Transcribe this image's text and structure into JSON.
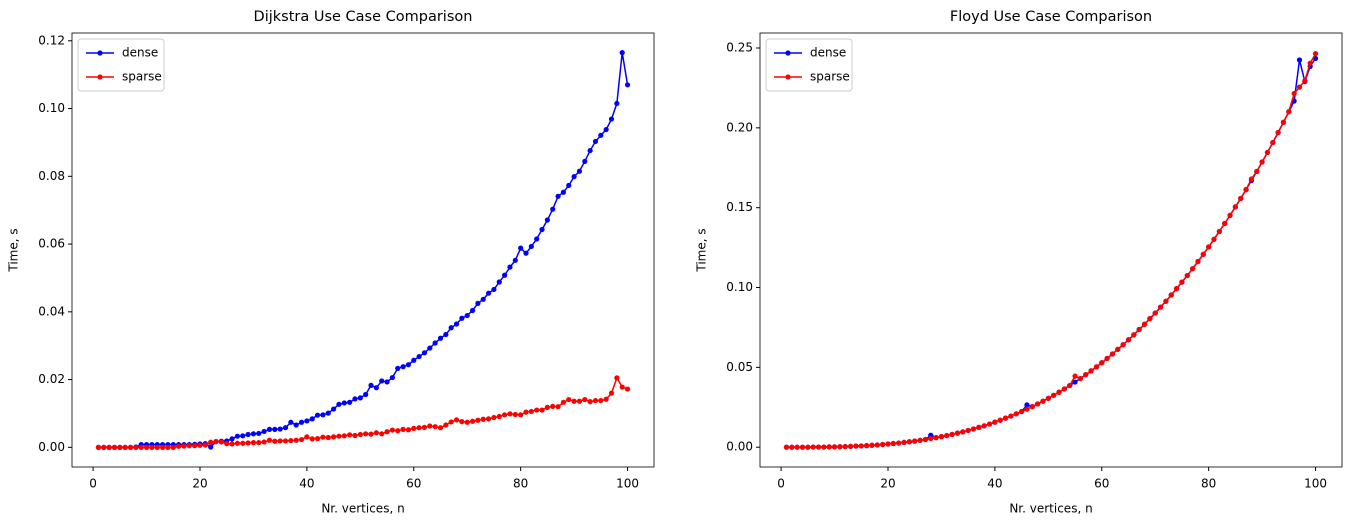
{
  "chart_data": [
    {
      "type": "line",
      "title": "Dijkstra Use Case Comparison",
      "x_label": "Nr. vertices, n",
      "y_label": "Time, s",
      "x": [
        1,
        2,
        3,
        4,
        5,
        6,
        7,
        8,
        9,
        10,
        11,
        12,
        13,
        14,
        15,
        16,
        17,
        18,
        19,
        20,
        21,
        22,
        23,
        24,
        25,
        26,
        27,
        28,
        29,
        30,
        31,
        32,
        33,
        34,
        35,
        36,
        37,
        38,
        39,
        40,
        41,
        42,
        43,
        44,
        45,
        46,
        47,
        48,
        49,
        50,
        51,
        52,
        53,
        54,
        55,
        56,
        57,
        58,
        59,
        60,
        61,
        62,
        63,
        64,
        65,
        66,
        67,
        68,
        69,
        70,
        71,
        72,
        73,
        74,
        75,
        76,
        77,
        78,
        79,
        80,
        81,
        82,
        83,
        84,
        85,
        86,
        87,
        88,
        89,
        90,
        91,
        92,
        93,
        94,
        95,
        96,
        97,
        98,
        99,
        100
      ],
      "xlim": [
        -3.95,
        104.95
      ],
      "xticks": [
        0,
        20,
        40,
        60,
        80,
        100
      ],
      "ylim": [
        -0.0058,
        0.1223
      ],
      "yticks": [
        {
          "value": 0,
          "label": "0.00"
        },
        {
          "value": 0.02,
          "label": "0.02"
        },
        {
          "value": 0.04,
          "label": "0.04"
        },
        {
          "value": 0.06,
          "label": "0.06"
        },
        {
          "value": 0.08,
          "label": "0.08"
        },
        {
          "value": 0.1,
          "label": "0.10"
        },
        {
          "value": 0.12,
          "label": "0.12"
        }
      ],
      "legend": "upper left",
      "series": [
        {
          "name": "dense",
          "color": "#0000ff",
          "values": [
            0,
            0,
            0,
            0,
            0,
            0,
            0,
            0.0001,
            0.0008,
            0.0008,
            0.0008,
            0.0008,
            0.0008,
            0.0008,
            0.0008,
            0.0008,
            0.0008,
            0.0008,
            0.0009,
            0.001,
            0.0011,
            0.0001,
            0.0017,
            0.0018,
            0.0019,
            0.0025,
            0.0033,
            0.0034,
            0.0038,
            0.004,
            0.0041,
            0.0047,
            0.0053,
            0.0053,
            0.0054,
            0.0058,
            0.0074,
            0.0066,
            0.0074,
            0.0078,
            0.0084,
            0.0095,
            0.0096,
            0.0101,
            0.0113,
            0.0127,
            0.0131,
            0.0133,
            0.0143,
            0.0146,
            0.0156,
            0.0183,
            0.0176,
            0.0196,
            0.0193,
            0.0206,
            0.0233,
            0.0238,
            0.0244,
            0.0257,
            0.0268,
            0.0279,
            0.0293,
            0.0308,
            0.0322,
            0.0333,
            0.0353,
            0.0364,
            0.0381,
            0.0389,
            0.0404,
            0.0425,
            0.0437,
            0.0455,
            0.0466,
            0.0488,
            0.0508,
            0.0532,
            0.0552,
            0.0588,
            0.0573,
            0.0593,
            0.0615,
            0.0643,
            0.0671,
            0.0703,
            0.0741,
            0.0753,
            0.0773,
            0.0799,
            0.0815,
            0.0844,
            0.0876,
            0.0903,
            0.0921,
            0.0938,
            0.0969,
            0.1015,
            0.1165,
            0.107
          ]
        },
        {
          "name": "sparse",
          "color": "#ff0000",
          "values": [
            0,
            0,
            0,
            0,
            0,
            0,
            0,
            0,
            0,
            0,
            0,
            0,
            0,
            0,
            0,
            0.0003,
            0.0004,
            0.0005,
            0.0005,
            0.0006,
            0.0007,
            0.0015,
            0.0017,
            0.0016,
            0.0011,
            0.001,
            0.0012,
            0.0012,
            0.0013,
            0.0014,
            0.0014,
            0.0016,
            0.0021,
            0.0018,
            0.0019,
            0.0019,
            0.002,
            0.0021,
            0.0023,
            0.0031,
            0.0025,
            0.0026,
            0.003,
            0.0029,
            0.0031,
            0.0033,
            0.0034,
            0.0037,
            0.0035,
            0.0038,
            0.004,
            0.0039,
            0.0043,
            0.004,
            0.0046,
            0.0051,
            0.0049,
            0.0053,
            0.0052,
            0.0056,
            0.0058,
            0.0059,
            0.0063,
            0.0061,
            0.0058,
            0.0066,
            0.0075,
            0.0081,
            0.0076,
            0.0074,
            0.0077,
            0.008,
            0.0083,
            0.0084,
            0.0088,
            0.0091,
            0.0096,
            0.0099,
            0.0097,
            0.0096,
            0.0104,
            0.0106,
            0.011,
            0.011,
            0.0118,
            0.0121,
            0.012,
            0.0133,
            0.0141,
            0.0136,
            0.0136,
            0.0141,
            0.0135,
            0.0138,
            0.0138,
            0.0142,
            0.016,
            0.0205,
            0.0178,
            0.0172
          ]
        }
      ]
    },
    {
      "type": "line",
      "title": "Floyd Use Case Comparison",
      "x_label": "Nr. vertices, n",
      "y_label": "Time, s",
      "x": [
        1,
        2,
        3,
        4,
        5,
        6,
        7,
        8,
        9,
        10,
        11,
        12,
        13,
        14,
        15,
        16,
        17,
        18,
        19,
        20,
        21,
        22,
        23,
        24,
        25,
        26,
        27,
        28,
        29,
        30,
        31,
        32,
        33,
        34,
        35,
        36,
        37,
        38,
        39,
        40,
        41,
        42,
        43,
        44,
        45,
        46,
        47,
        48,
        49,
        50,
        51,
        52,
        53,
        54,
        55,
        56,
        57,
        58,
        59,
        60,
        61,
        62,
        63,
        64,
        65,
        66,
        67,
        68,
        69,
        70,
        71,
        72,
        73,
        74,
        75,
        76,
        77,
        78,
        79,
        80,
        81,
        82,
        83,
        84,
        85,
        86,
        87,
        88,
        89,
        90,
        91,
        92,
        93,
        94,
        95,
        96,
        97,
        98,
        99,
        100
      ],
      "xlim": [
        -3.95,
        104.95
      ],
      "xticks": [
        0,
        20,
        40,
        60,
        80,
        100
      ],
      "ylim": [
        -0.0124,
        0.2594
      ],
      "yticks": [
        {
          "value": 0,
          "label": "0.00"
        },
        {
          "value": 0.05,
          "label": "0.05"
        },
        {
          "value": 0.1,
          "label": "0.10"
        },
        {
          "value": 0.15,
          "label": "0.15"
        },
        {
          "value": 0.2,
          "label": "0.20"
        },
        {
          "value": 0.25,
          "label": "0.25"
        }
      ],
      "legend": "upper left",
      "series": [
        {
          "name": "dense",
          "color": "#0000ff",
          "values": [
            0,
            0,
            0,
            0,
            0,
            0.0001,
            0.0001,
            0.0001,
            0.0002,
            0.0002,
            0.0003,
            0.0004,
            0.0005,
            0.0007,
            0.0008,
            0.001,
            0.0012,
            0.0014,
            0.0017,
            0.002,
            0.0023,
            0.0026,
            0.003,
            0.0034,
            0.0038,
            0.0043,
            0.0048,
            0.0075,
            0.006,
            0.0066,
            0.0073,
            0.008,
            0.0088,
            0.0096,
            0.0105,
            0.0114,
            0.0124,
            0.0134,
            0.0145,
            0.0157,
            0.0169,
            0.0182,
            0.0195,
            0.0209,
            0.0223,
            0.0265,
            0.0254,
            0.0271,
            0.0288,
            0.0306,
            0.0325,
            0.0344,
            0.0365,
            0.0386,
            0.0408,
            0.043,
            0.0454,
            0.0478,
            0.0503,
            0.0529,
            0.0556,
            0.0584,
            0.0613,
            0.0642,
            0.0673,
            0.0704,
            0.0737,
            0.077,
            0.0805,
            0.084,
            0.0877,
            0.0914,
            0.0953,
            0.0993,
            0.1034,
            0.1075,
            0.1118,
            0.1163,
            0.1208,
            0.1254,
            0.1302,
            0.1351,
            0.1401,
            0.1452,
            0.1505,
            0.1558,
            0.1613,
            0.167,
            0.1727,
            0.1786,
            0.1846,
            0.1908,
            0.1971,
            0.2035,
            0.2101,
            0.2168,
            0.2425,
            0.229,
            0.2385,
            0.2435
          ]
        },
        {
          "name": "sparse",
          "color": "#ff0000",
          "values": [
            0,
            0,
            0,
            0,
            0,
            0.0001,
            0.0001,
            0.0001,
            0.0002,
            0.0002,
            0.0003,
            0.0004,
            0.0005,
            0.0007,
            0.0008,
            0.001,
            0.0012,
            0.0014,
            0.0017,
            0.002,
            0.0023,
            0.0026,
            0.003,
            0.0034,
            0.0038,
            0.0043,
            0.0048,
            0.0054,
            0.006,
            0.0066,
            0.0073,
            0.008,
            0.0088,
            0.0096,
            0.0105,
            0.0114,
            0.0124,
            0.0134,
            0.0145,
            0.0157,
            0.0169,
            0.0182,
            0.0195,
            0.0209,
            0.0223,
            0.0238,
            0.0254,
            0.0271,
            0.0288,
            0.0306,
            0.0325,
            0.0344,
            0.0365,
            0.0386,
            0.0445,
            0.043,
            0.0454,
            0.0478,
            0.0503,
            0.0529,
            0.0556,
            0.0584,
            0.0613,
            0.0642,
            0.0673,
            0.0704,
            0.0737,
            0.077,
            0.0805,
            0.084,
            0.0877,
            0.0914,
            0.0953,
            0.0993,
            0.1034,
            0.1075,
            0.1118,
            0.1163,
            0.1208,
            0.1254,
            0.1302,
            0.1351,
            0.1401,
            0.1452,
            0.1505,
            0.1558,
            0.1613,
            0.168,
            0.1727,
            0.1786,
            0.1846,
            0.1908,
            0.1971,
            0.2035,
            0.2101,
            0.2215,
            0.2255,
            0.2295,
            0.2405,
            0.2465
          ]
        }
      ]
    }
  ]
}
